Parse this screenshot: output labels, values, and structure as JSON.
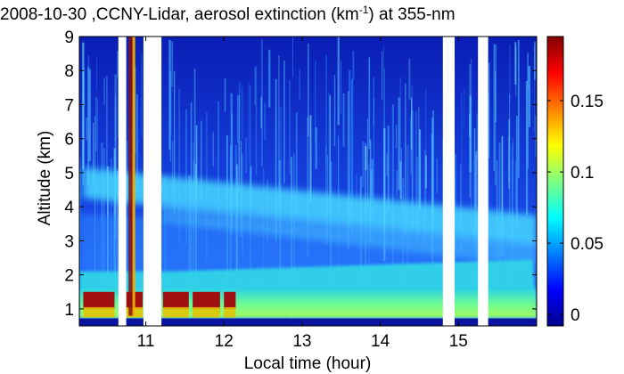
{
  "chart_data": {
    "type": "heatmap",
    "title_main": "2008-10-30 ,CCNY-Lidar, aerosol extinction (km",
    "title_sup": "-1",
    "title_tail": ") at 355-nm",
    "xlabel": "Local time (hour)",
    "ylabel": "Altitude (km)",
    "xlim": [
      10.15,
      16.0
    ],
    "ylim": [
      0.5,
      9.0
    ],
    "x_ticks": [
      11,
      12,
      13,
      14,
      15
    ],
    "y_ticks": [
      1,
      2,
      3,
      4,
      5,
      6,
      7,
      8,
      9
    ],
    "colorbar": {
      "range": [
        -0.008,
        0.195
      ],
      "ticks": [
        0,
        0.05,
        0.1,
        0.15
      ],
      "colormap": "jet"
    },
    "data_gaps_hours": [
      [
        10.65,
        10.75
      ],
      [
        10.97,
        11.2
      ],
      [
        14.8,
        14.95
      ],
      [
        15.25,
        15.38
      ]
    ],
    "features": [
      {
        "label": "aerosol boundary layer (high extinction)",
        "altitude_km_range": [
          0.8,
          1.6
        ],
        "value_range": [
          0.06,
          0.195
        ]
      },
      {
        "label": "elevated aerosol layer (descending)",
        "start": {
          "time": 10.2,
          "altitude_km": 4.7
        },
        "end": {
          "time": 16.0,
          "altitude_km": 3.3
        },
        "value_range": [
          0.03,
          0.05
        ]
      },
      {
        "label": "secondary layer",
        "start": {
          "time": 11.2,
          "altitude_km": 3.9
        },
        "end": {
          "time": 16.0,
          "altitude_km": 2.6
        },
        "value_range": [
          0.02,
          0.04
        ]
      }
    ]
  }
}
